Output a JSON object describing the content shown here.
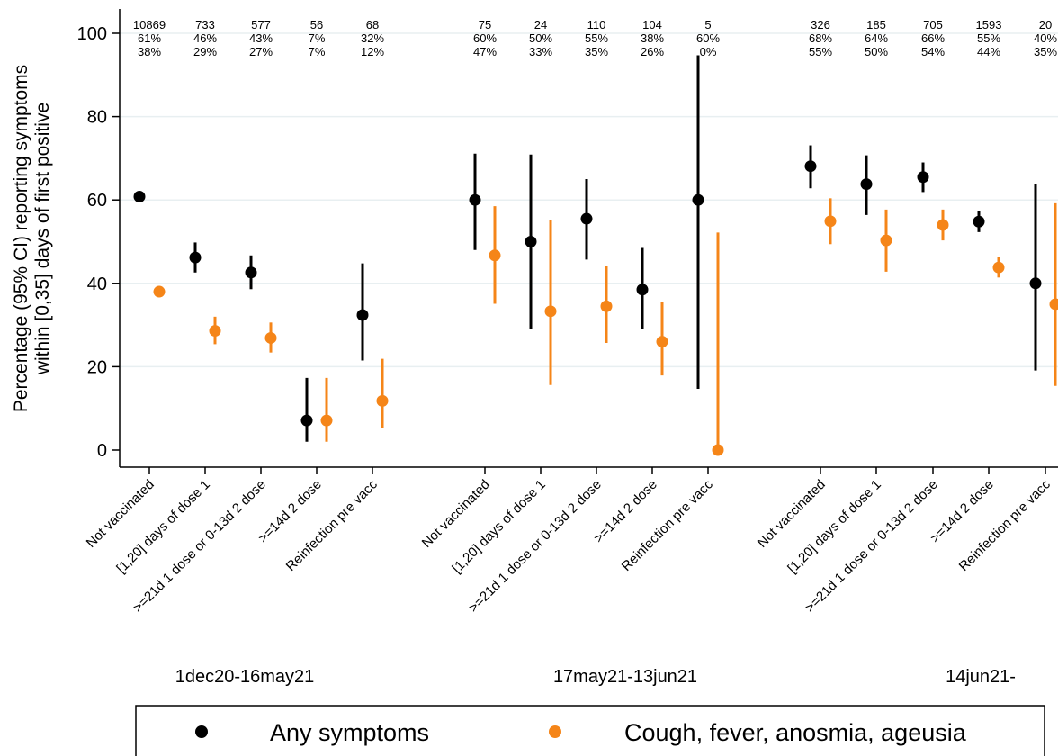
{
  "chart_data": {
    "type": "scatter",
    "ylabel_lines": [
      "Percentage (95% CI) reporting symptoms",
      "within [0,35] days of first positive"
    ],
    "ylim": [
      0,
      100
    ],
    "yticks": [
      "0",
      "20",
      "40",
      "60",
      "80",
      "100"
    ],
    "grid": true,
    "legend_position": "bottom",
    "colors": {
      "any": "#000000",
      "classic": "#f58518",
      "grid": "#e8eff1"
    },
    "series": [
      {
        "name": "Any symptoms"
      },
      {
        "name": "Cough, fever, anosmia, ageusia"
      }
    ],
    "groups": [
      {
        "label": "1dec20-16may21",
        "categories": [
          {
            "label": "Not vaccinated",
            "n": "10869",
            "pct_any": "61%",
            "pct_classic": "38%",
            "any": [
              60.8,
              60.8,
              60.8
            ],
            "classic": [
              38.0,
              38.0,
              38.0
            ]
          },
          {
            "label": "[1,20] days of dose 1",
            "n": "733",
            "pct_any": "46%",
            "pct_classic": "29%",
            "any": [
              46.2,
              42.6,
              49.8
            ],
            "classic": [
              28.6,
              25.4,
              32.0
            ]
          },
          {
            "label": ">=21d 1 dose or 0-13d 2 dose",
            "n": "577",
            "pct_any": "43%",
            "pct_classic": "27%",
            "any": [
              42.6,
              38.6,
              46.7
            ],
            "classic": [
              26.9,
              23.4,
              30.6
            ]
          },
          {
            "label": ">=14d 2 dose",
            "n": "56",
            "pct_any": "7%",
            "pct_classic": "7%",
            "any": [
              7.1,
              2.0,
              17.3
            ],
            "classic": [
              7.1,
              2.0,
              17.3
            ]
          },
          {
            "label": "Reinfection pre vacc",
            "n": "68",
            "pct_any": "32%",
            "pct_classic": "12%",
            "any": [
              32.4,
              21.5,
              44.8
            ],
            "classic": [
              11.8,
              5.2,
              21.9
            ]
          }
        ]
      },
      {
        "label": "17may21-13jun21",
        "categories": [
          {
            "label": "Not vaccinated",
            "n": "75",
            "pct_any": "60%",
            "pct_classic": "47%",
            "any": [
              60.0,
              48.0,
              71.1
            ],
            "classic": [
              46.7,
              35.1,
              58.5
            ]
          },
          {
            "label": "[1,20] days of dose 1",
            "n": "24",
            "pct_any": "50%",
            "pct_classic": "33%",
            "any": [
              50.0,
              29.1,
              70.9
            ],
            "classic": [
              33.3,
              15.6,
              55.3
            ]
          },
          {
            "label": ">=21d 1 dose or 0-13d 2 dose",
            "n": "110",
            "pct_any": "55%",
            "pct_classic": "35%",
            "any": [
              55.5,
              45.7,
              65.0
            ],
            "classic": [
              34.5,
              25.7,
              44.2
            ]
          },
          {
            "label": ">=14d 2 dose",
            "n": "104",
            "pct_any": "38%",
            "pct_classic": "26%",
            "any": [
              38.5,
              29.1,
              48.5
            ],
            "classic": [
              26.0,
              17.9,
              35.5
            ]
          },
          {
            "label": "Reinfection pre vacc",
            "n": "5",
            "pct_any": "60%",
            "pct_classic": "0%",
            "any": [
              60.0,
              14.7,
              94.7
            ],
            "classic": [
              0.0,
              0.0,
              52.2
            ]
          }
        ]
      },
      {
        "label": "14jun21-",
        "categories": [
          {
            "label": "Not vaccinated",
            "n": "326",
            "pct_any": "68%",
            "pct_classic": "55%",
            "any": [
              68.1,
              62.8,
              73.1
            ],
            "classic": [
              54.9,
              49.4,
              60.4
            ]
          },
          {
            "label": "[1,20] days of dose 1",
            "n": "185",
            "pct_any": "64%",
            "pct_classic": "50%",
            "any": [
              63.8,
              56.4,
              70.7
            ],
            "classic": [
              50.3,
              42.8,
              57.7
            ]
          },
          {
            "label": ">=21d 1 dose or 0-13d 2 dose",
            "n": "705",
            "pct_any": "66%",
            "pct_classic": "54%",
            "any": [
              65.5,
              61.9,
              69.0
            ],
            "classic": [
              54.0,
              50.3,
              57.7
            ]
          },
          {
            "label": ">=14d 2 dose",
            "n": "1593",
            "pct_any": "55%",
            "pct_classic": "44%",
            "any": [
              54.8,
              52.3,
              57.3
            ],
            "classic": [
              43.8,
              41.4,
              46.3
            ]
          },
          {
            "label": "Reinfection pre vacc",
            "n": "20",
            "pct_any": "40%",
            "pct_classic": "35%",
            "any": [
              40.0,
              19.1,
              63.9
            ],
            "classic": [
              35.0,
              15.4,
              59.2
            ]
          }
        ]
      }
    ]
  }
}
